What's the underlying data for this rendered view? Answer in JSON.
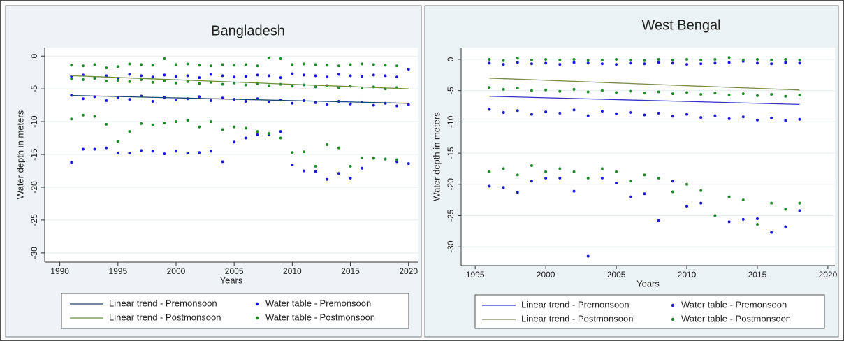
{
  "chart_data": [
    {
      "type": "scatter",
      "title": "Bangladesh",
      "xlabel": "Years",
      "ylabel": "Water depth in meters",
      "xlim": [
        1988.7,
        2020.8
      ],
      "ylim": [
        -31.4,
        1.3
      ],
      "xticks": [
        1990,
        1995,
        2000,
        2005,
        2010,
        2015,
        2020
      ],
      "yticks": [
        0,
        -5,
        -10,
        -15,
        -20,
        -25,
        -30
      ],
      "grid": true,
      "series": [
        {
          "name": "Linear trend - Premonsoon",
          "type": "line",
          "color": "#1a476f",
          "x": [
            1991,
            2020
          ],
          "values": [
            -6.0,
            -7.2
          ]
        },
        {
          "name": "Water table - Premonsoon",
          "type": "scatter",
          "color": "#1c1cd6",
          "x": [
            1991,
            1992,
            1993,
            1994,
            1995,
            1996,
            1997,
            1998,
            1999,
            2000,
            2001,
            2002,
            2003,
            2004,
            2005,
            2006,
            2007,
            2008,
            2009,
            2010,
            2011,
            2012,
            2013,
            2014,
            2015,
            2016,
            2017,
            2018,
            2019,
            2020,
            1991,
            1992,
            1993,
            1994,
            1995,
            1996,
            1997,
            1998,
            1999,
            2000,
            2001,
            2002,
            2003,
            2004,
            2005,
            2006,
            2007,
            2008,
            2009,
            2010,
            2011,
            2012,
            2013,
            2014,
            2015,
            2016,
            2017,
            2018,
            2019,
            2020,
            1991,
            1992,
            1993,
            1994,
            1995,
            1996,
            1997,
            1998,
            1999,
            2000,
            2001,
            2002,
            2003,
            2004,
            2005,
            2006,
            2007,
            2008,
            2009,
            2010,
            2011,
            2012,
            2013,
            2014,
            2015,
            2016,
            2017,
            2018,
            2019,
            2020
          ],
          "values": [
            -3.1,
            -2.9,
            -3.3,
            -3.0,
            -3.4,
            -2.8,
            -3.0,
            -3.2,
            -2.9,
            -3.1,
            -3.0,
            -3.3,
            -2.8,
            -3.0,
            -3.2,
            -3.1,
            -2.9,
            -3.0,
            -3.3,
            -2.7,
            -2.9,
            -3.0,
            -3.2,
            -2.8,
            -3.0,
            -3.1,
            -2.9,
            -3.0,
            -3.2,
            -2.0,
            -6.0,
            -6.5,
            -6.2,
            -6.8,
            -6.4,
            -6.6,
            -6.1,
            -6.9,
            -6.3,
            -6.7,
            -6.5,
            -6.2,
            -6.8,
            -6.4,
            -6.6,
            -6.9,
            -6.5,
            -7.0,
            -6.7,
            -7.2,
            -6.8,
            -7.1,
            -7.4,
            -6.9,
            -7.3,
            -7.0,
            -7.5,
            -7.2,
            -7.6,
            -7.4,
            -16.2,
            -14.2,
            -14.2,
            -14.0,
            -14.8,
            -14.8,
            -14.4,
            -14.5,
            -14.9,
            -14.5,
            -14.8,
            -14.7,
            -14.5,
            -16.1,
            -13.1,
            -12.5,
            -12.0,
            -12.0,
            -11.5,
            -16.6,
            -17.5,
            -17.6,
            -18.8,
            -17.9,
            -18.6,
            -17.1,
            -15.5,
            -15.7,
            -16.1,
            -16.4
          ]
        },
        {
          "name": "Linear trend - Postmonsoon",
          "type": "line",
          "color": "#6b8e3a",
          "x": [
            1991,
            2020
          ],
          "values": [
            -3.0,
            -5.0
          ]
        },
        {
          "name": "Water table - Postmonsoon",
          "type": "scatter",
          "color": "#1f8c2a",
          "x": [
            1991,
            1992,
            1993,
            1994,
            1995,
            1996,
            1997,
            1998,
            1999,
            2000,
            2001,
            2002,
            2003,
            2004,
            2005,
            2006,
            2007,
            2008,
            2009,
            2010,
            2011,
            2012,
            2013,
            2014,
            2015,
            2016,
            2017,
            2018,
            2019,
            1991,
            1992,
            1993,
            1994,
            1995,
            1996,
            1997,
            1998,
            1999,
            2000,
            2001,
            2002,
            2003,
            2004,
            2005,
            2006,
            2007,
            2008,
            2009,
            2010,
            2011,
            2012,
            2013,
            2014,
            2015,
            2016,
            2017,
            2018,
            2019,
            1991,
            1992,
            1993,
            1994,
            1995,
            1996,
            1997,
            1998,
            1999,
            2000,
            2001,
            2002,
            2003,
            2004,
            2005,
            2006,
            2007,
            2008,
            2009,
            2010,
            2011,
            2012,
            2013,
            2014,
            2015,
            2016,
            2017,
            2018,
            2019
          ],
          "values": [
            -1.4,
            -1.5,
            -1.3,
            -1.8,
            -1.6,
            -1.2,
            -1.3,
            -1.4,
            -0.4,
            -1.3,
            -1.2,
            -1.4,
            -1.5,
            -1.3,
            -1.4,
            -1.3,
            -1.5,
            -0.3,
            -0.4,
            -1.3,
            -1.2,
            -1.3,
            -1.4,
            -1.5,
            -1.3,
            -1.2,
            -1.3,
            -1.4,
            -1.5,
            -3.5,
            -3.6,
            -3.4,
            -3.8,
            -3.7,
            -3.9,
            -3.6,
            -4.0,
            -3.8,
            -4.1,
            -3.9,
            -4.2,
            -4.0,
            -4.3,
            -4.1,
            -4.4,
            -4.2,
            -4.5,
            -4.3,
            -4.6,
            -4.4,
            -4.7,
            -4.5,
            -4.8,
            -4.6,
            -4.9,
            -4.7,
            -5.0,
            -4.8,
            -9.6,
            -9.0,
            -9.2,
            -10.4,
            -13.0,
            -11.5,
            -10.3,
            -10.5,
            -10.2,
            -10.0,
            -9.8,
            -10.8,
            -10.0,
            -11.2,
            -10.8,
            -11.0,
            -11.5,
            -11.8,
            -12.5,
            -14.7,
            -14.6,
            -16.8,
            -13.5,
            -14.0,
            -16.8,
            -15.5,
            -15.6,
            -15.7,
            -15.8
          ]
        }
      ]
    },
    {
      "type": "scatter",
      "title": "West Bengal",
      "xlabel": "Years",
      "ylabel": "Water depth in meters",
      "xlim": [
        1994,
        2020.5
      ],
      "ylim": [
        -33,
        1.9
      ],
      "xticks": [
        1995,
        2000,
        2005,
        2010,
        2015,
        2020
      ],
      "yticks": [
        0,
        -5,
        -10,
        -15,
        -20,
        -25,
        -30
      ],
      "grid": true,
      "series": [
        {
          "name": "Linear trend - Premonsoon",
          "type": "line",
          "color": "#3434c8",
          "x": [
            1996,
            2018
          ],
          "values": [
            -5.9,
            -7.2
          ]
        },
        {
          "name": "Water table - Premonsoon",
          "type": "scatter",
          "color": "#1c1cd6",
          "x": [
            1996,
            1997,
            1998,
            1999,
            2000,
            2001,
            2002,
            2003,
            2004,
            2005,
            2006,
            2007,
            2008,
            2009,
            2010,
            2011,
            2012,
            2013,
            2014,
            2015,
            2016,
            2017,
            2018,
            1996,
            1997,
            1998,
            1999,
            2000,
            2001,
            2002,
            2003,
            2004,
            2005,
            2006,
            2007,
            2008,
            2009,
            2010,
            2011,
            2012,
            2013,
            2014,
            2015,
            2016,
            2017,
            2018,
            1996,
            1997,
            1998,
            1999,
            2000,
            2001,
            2002,
            2003,
            2004,
            2005,
            2006,
            2007,
            2008,
            2009,
            2010,
            2011,
            2012,
            2013,
            2014,
            2015,
            2016,
            2017,
            2018
          ],
          "values": [
            -0.6,
            -0.8,
            -0.5,
            -0.7,
            -0.6,
            -0.8,
            -0.5,
            -0.6,
            -0.7,
            -0.8,
            -0.6,
            -0.7,
            -0.5,
            -0.6,
            -0.8,
            -0.7,
            -0.6,
            -0.5,
            -0.3,
            -0.6,
            -0.7,
            -0.5,
            -0.6,
            -8.0,
            -8.5,
            -8.2,
            -8.8,
            -8.4,
            -8.6,
            -8.1,
            -9.0,
            -8.3,
            -8.7,
            -8.5,
            -8.9,
            -8.6,
            -9.1,
            -8.8,
            -9.3,
            -9.0,
            -9.5,
            -9.2,
            -9.7,
            -9.4,
            -9.8,
            -9.6,
            -20.3,
            -20.5,
            -21.3,
            -19.5,
            -19.0,
            -19.0,
            -21.1,
            -31.5,
            -19.0,
            -19.8,
            -22.0,
            -21.5,
            -25.8,
            -19.5,
            -23.5,
            -23.0,
            -25.0,
            -26.0,
            -25.6,
            -25.5,
            -27.7,
            -26.8,
            -24.2
          ]
        },
        {
          "name": "Linear trend - Postmonsoon",
          "type": "line",
          "color": "#7a8a4a",
          "x": [
            1996,
            2018
          ],
          "values": [
            -3.0,
            -4.9
          ]
        },
        {
          "name": "Water table - Postmonsoon",
          "type": "scatter",
          "color": "#1f8c2a",
          "x": [
            1996,
            1997,
            1998,
            1999,
            2000,
            2001,
            2002,
            2003,
            2004,
            2005,
            2006,
            2007,
            2008,
            2009,
            2010,
            2011,
            2012,
            2013,
            2014,
            2015,
            2016,
            2017,
            2018,
            1996,
            1997,
            1998,
            1999,
            2000,
            2001,
            2002,
            2003,
            2004,
            2005,
            2006,
            2007,
            2008,
            2009,
            2010,
            2011,
            2012,
            2013,
            2014,
            2015,
            2016,
            2017,
            2018,
            1996,
            1997,
            1998,
            1999,
            2000,
            2001,
            2002,
            2003,
            2004,
            2005,
            2006,
            2007,
            2008,
            2009,
            2010,
            2011,
            2012,
            2013,
            2014,
            2015,
            2016,
            2017,
            2018
          ],
          "values": [
            0,
            -0.2,
            0.2,
            -0.1,
            0,
            -0.1,
            0,
            -0.2,
            -0.1,
            0,
            -0.1,
            -0.2,
            0,
            -0.1,
            0,
            -0.1,
            0,
            0.3,
            -0.1,
            0,
            -0.1,
            0,
            -0.1,
            -4.5,
            -4.8,
            -4.6,
            -5.0,
            -4.9,
            -5.1,
            -4.8,
            -5.2,
            -5.0,
            -5.3,
            -5.1,
            -5.4,
            -5.2,
            -5.5,
            -5.3,
            -5.6,
            -5.4,
            -5.7,
            -5.5,
            -5.8,
            -5.6,
            -5.9,
            -5.7,
            -18.0,
            -17.5,
            -18.5,
            -17.0,
            -18.0,
            -17.5,
            -18.0,
            -19.0,
            -17.5,
            -18.0,
            -19.5,
            -18.5,
            -19.0,
            -21.2,
            -20.0,
            -21.0,
            -25.0,
            -22.0,
            -22.5,
            -26.4,
            -23.0,
            -24.0,
            -23.0
          ]
        }
      ]
    }
  ]
}
